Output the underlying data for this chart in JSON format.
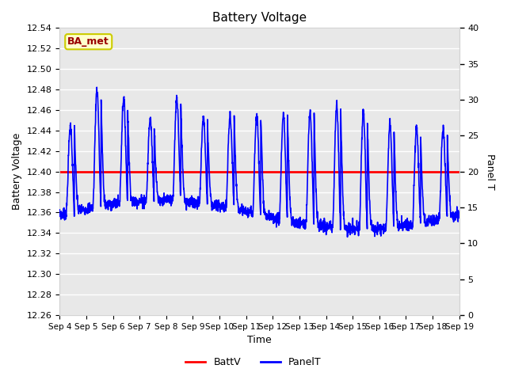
{
  "title": "Battery Voltage",
  "xlabel": "Time",
  "ylabel_left": "Battery Voltage",
  "ylabel_right": "Panel T",
  "ylim_left": [
    12.26,
    12.54
  ],
  "ylim_right": [
    0,
    40
  ],
  "batt_voltage": 12.4,
  "annotation_text": "BA_met",
  "annotation_bg": "#ffffcc",
  "annotation_border": "#cccc00",
  "annotation_text_color": "#990000",
  "line_color_batt": "red",
  "line_color_panel": "blue",
  "background_color": "#e8e8e8",
  "grid_color": "white",
  "xtick_labels": [
    "Sep 4",
    "Sep 5",
    "Sep 6",
    "Sep 7",
    "Sep 8",
    "Sep 9",
    "Sep 10",
    "Sep 11",
    "Sep 12",
    "Sep 13",
    "Sep 14",
    "Sep 15",
    "Sep 16",
    "Sep 17",
    "Sep 18",
    "Sep 19"
  ],
  "yticks_left": [
    12.26,
    12.28,
    12.3,
    12.32,
    12.34,
    12.36,
    12.38,
    12.4,
    12.42,
    12.44,
    12.46,
    12.48,
    12.5,
    12.52,
    12.54
  ],
  "yticks_right": [
    0,
    5,
    10,
    15,
    20,
    25,
    30,
    35,
    40
  ],
  "n_days": 15
}
